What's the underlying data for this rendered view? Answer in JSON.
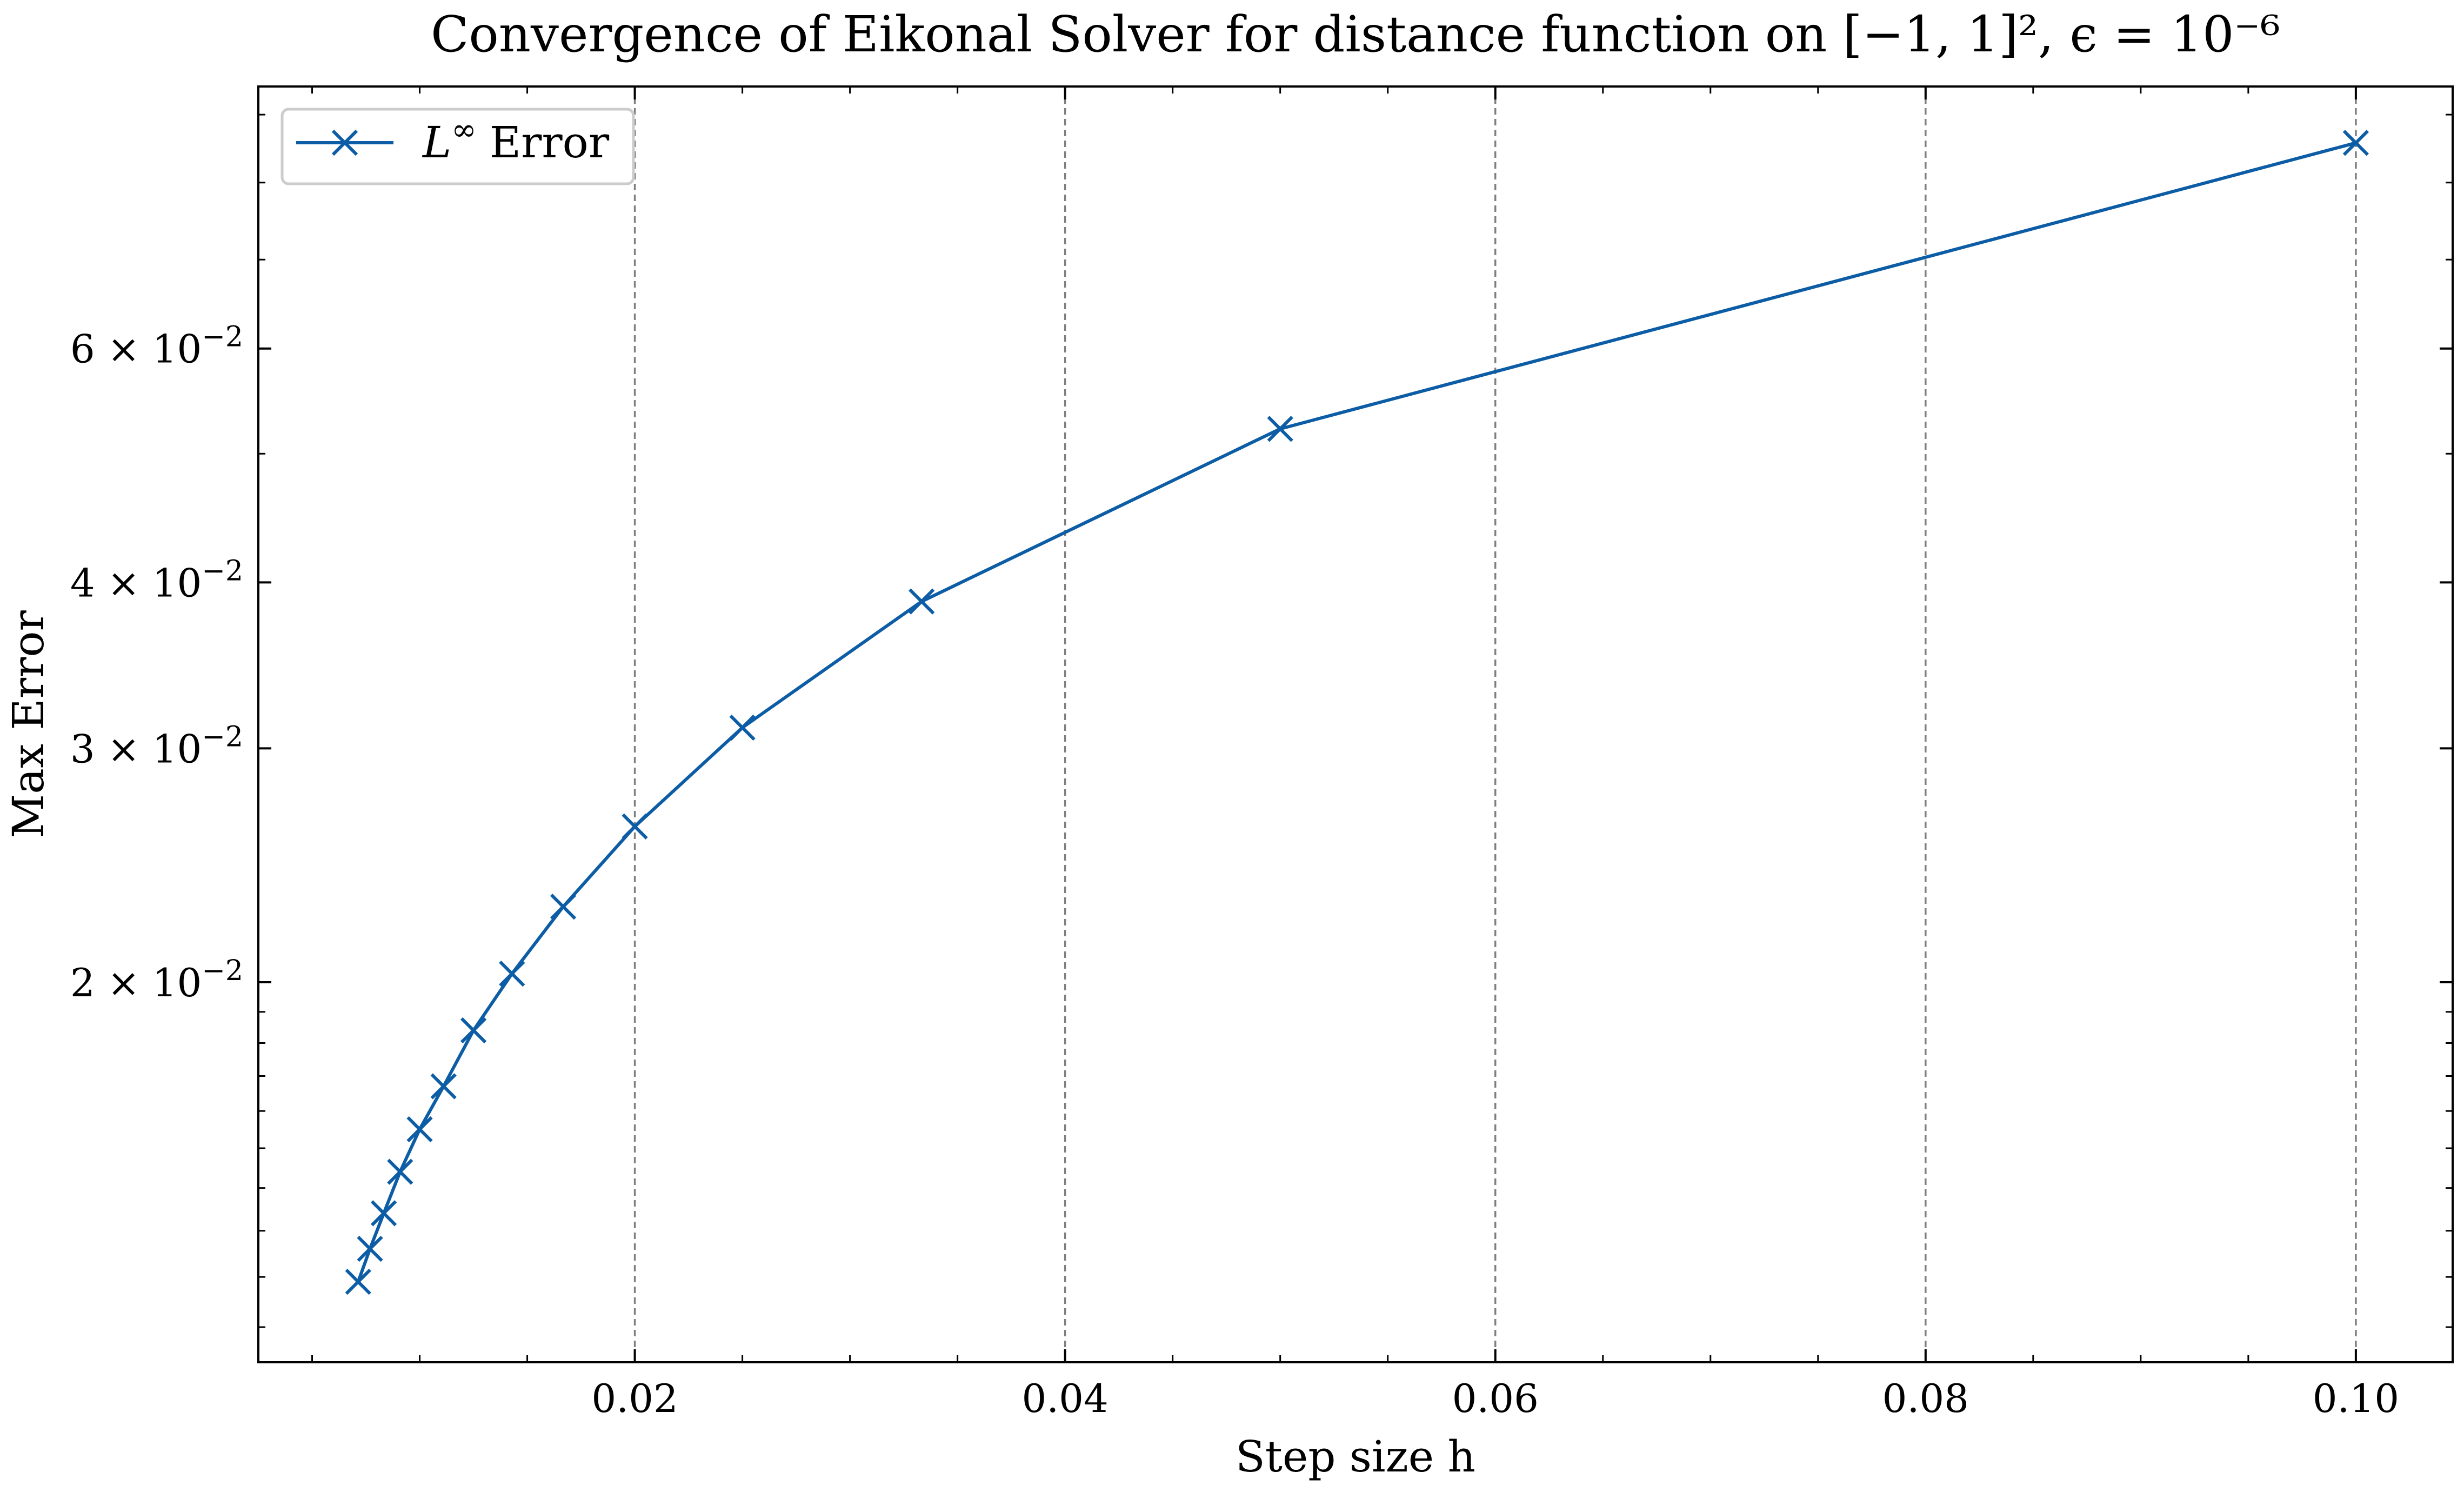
{
  "colors": {
    "series": "#0C5DA5",
    "grid": "#7f7f7f",
    "axis": "#000000",
    "background": "#ffffff"
  },
  "chart_data": {
    "type": "line",
    "title": "Convergence of Eikonal Solver for distance function on [−1, 1]², ϵ = 10⁻⁶",
    "xlabel": "Step size h",
    "ylabel": "Max Error",
    "xscale": "linear",
    "yscale": "log",
    "xlim": [
      0.0025,
      0.1045
    ],
    "ylim": [
      0.01035,
      0.0945
    ],
    "xticks": [
      0.02,
      0.04,
      0.06,
      0.08,
      0.1
    ],
    "xtick_labels": [
      "0.02",
      "0.04",
      "0.06",
      "0.08",
      "0.10"
    ],
    "yticks": [
      0.02,
      0.03,
      0.04,
      0.06
    ],
    "ytick_labels": [
      {
        "mant": "2 × 10",
        "exp": "−2"
      },
      {
        "mant": "3 × 10",
        "exp": "−2"
      },
      {
        "mant": "4 × 10",
        "exp": "−2"
      },
      {
        "mant": "6 × 10",
        "exp": "−2"
      }
    ],
    "grid": "x-major dashed",
    "legend": {
      "position": "top-left",
      "entries": [
        {
          "text": "Error",
          "math": "L",
          "sup": "∞"
        }
      ]
    },
    "series": [
      {
        "name": "L∞ Error",
        "marker": "x",
        "x": [
          0.1,
          0.05,
          0.03333,
          0.025,
          0.02,
          0.01667,
          0.01429,
          0.0125,
          0.01111,
          0.01,
          0.00909,
          0.00833,
          0.00769,
          0.00714
        ],
        "y": [
          0.0857,
          0.0522,
          0.0387,
          0.0311,
          0.0262,
          0.0228,
          0.0203,
          0.0184,
          0.0167,
          0.0155,
          0.0144,
          0.0134,
          0.0126,
          0.0119
        ]
      }
    ]
  }
}
